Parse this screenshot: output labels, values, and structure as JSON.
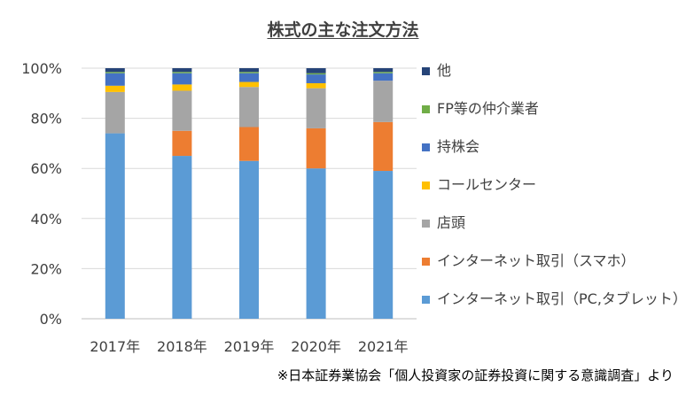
{
  "chart_data": {
    "type": "bar",
    "stacked": true,
    "title": "株式の主な注文方法",
    "categories": [
      "2017年",
      "2018年",
      "2019年",
      "2020年",
      "2021年"
    ],
    "ylim": [
      0,
      100
    ],
    "yticks": [
      "0%",
      "20%",
      "40%",
      "60%",
      "80%",
      "100%"
    ],
    "grid": true,
    "legend_position": "right",
    "series": [
      {
        "name": "インターネット取引（PC,タブレット）",
        "color": "#5B9BD5",
        "values": [
          74,
          65,
          63,
          60,
          59
        ]
      },
      {
        "name": "インターネット取引（スマホ）",
        "color": "#ED7D31",
        "values": [
          0,
          10,
          13.5,
          16,
          19.5
        ]
      },
      {
        "name": "店頭",
        "color": "#A5A5A5",
        "values": [
          16.5,
          16,
          16,
          16,
          16.5
        ]
      },
      {
        "name": "コールセンター",
        "color": "#FFC000",
        "values": [
          2.5,
          2.5,
          2,
          2,
          0
        ]
      },
      {
        "name": "持株会",
        "color": "#4472C4",
        "values": [
          5,
          4.5,
          3.5,
          3.5,
          3
        ]
      },
      {
        "name": "FP等の仲介業者",
        "color": "#70AD47",
        "values": [
          0.5,
          0.5,
          0.5,
          0.5,
          0.5
        ]
      },
      {
        "name": "他",
        "color": "#264478",
        "values": [
          1.5,
          1.5,
          1.5,
          2,
          1.5
        ]
      }
    ]
  },
  "source_note": "※日本証券業協会「個人投資家の証券投資に関する意識調査」より"
}
